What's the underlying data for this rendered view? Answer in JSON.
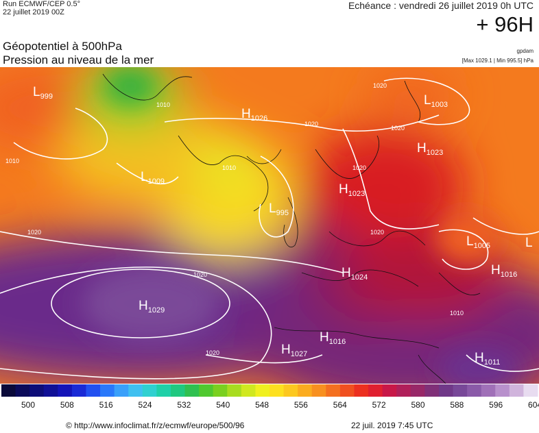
{
  "header": {
    "run": "Run ECMWF/CEP 0.5°",
    "run_date": "22 juillet 2019 00Z",
    "echeance": "Echéance : vendredi 26 juillet 2019 0h UTC",
    "horizon": "+ 96H",
    "title_line1": "Géopotentiel à 500hPa",
    "title_line2": "Pression au niveau de la mer",
    "unit": "gpdam",
    "minmax": "[Max 1029.1 | Min 995.5] hPa"
  },
  "pressure_centers": [
    {
      "type": "L",
      "value": "999"
    },
    {
      "type": "H",
      "value": "1026"
    },
    {
      "type": "L",
      "value": "1003"
    },
    {
      "type": "H",
      "value": "1023"
    },
    {
      "type": "L",
      "value": "1009"
    },
    {
      "type": "H",
      "value": "1023"
    },
    {
      "type": "L",
      "value": "995"
    },
    {
      "type": "L",
      "value": "1005"
    },
    {
      "type": "H",
      "value": "1024"
    },
    {
      "type": "H",
      "value": "1016"
    },
    {
      "type": "H",
      "value": "1029"
    },
    {
      "type": "H",
      "value": "1016"
    },
    {
      "type": "H",
      "value": "1027"
    },
    {
      "type": "H",
      "value": "1011"
    },
    {
      "type": "L",
      "value": ""
    }
  ],
  "isobar_labels": [
    "1010",
    "1020",
    "1020",
    "1010",
    "1020",
    "1020",
    "1010",
    "1020",
    "1020",
    "1020",
    "1010",
    "1020"
  ],
  "legend": {
    "colors": [
      "#0a0a3a",
      "#0b0b5a",
      "#0d0d78",
      "#101096",
      "#1414b8",
      "#1a2ad6",
      "#2250f0",
      "#2a78fa",
      "#3aa0fa",
      "#40c0f0",
      "#30d0d0",
      "#20d0a8",
      "#20c880",
      "#30c050",
      "#50c830",
      "#7ad020",
      "#a8dc20",
      "#d0e820",
      "#f0f020",
      "#fde020",
      "#fcc820",
      "#fbac20",
      "#f89020",
      "#f47020",
      "#f05020",
      "#ec3020",
      "#e02030",
      "#c81848",
      "#b0205a",
      "#982868",
      "#803078",
      "#703888",
      "#784898",
      "#8a5aa8",
      "#a070b8",
      "#b890cc",
      "#d0b4dc",
      "#e8dcf0"
    ],
    "ticks": [
      "500",
      "508",
      "516",
      "524",
      "532",
      "540",
      "548",
      "556",
      "564",
      "572",
      "580",
      "588",
      "596",
      "604"
    ]
  },
  "footer": {
    "source": "© http://www.infoclimat.fr/z/ecmwf/europe/500/96",
    "stamp": "22 juil. 2019  7:45 UTC"
  }
}
